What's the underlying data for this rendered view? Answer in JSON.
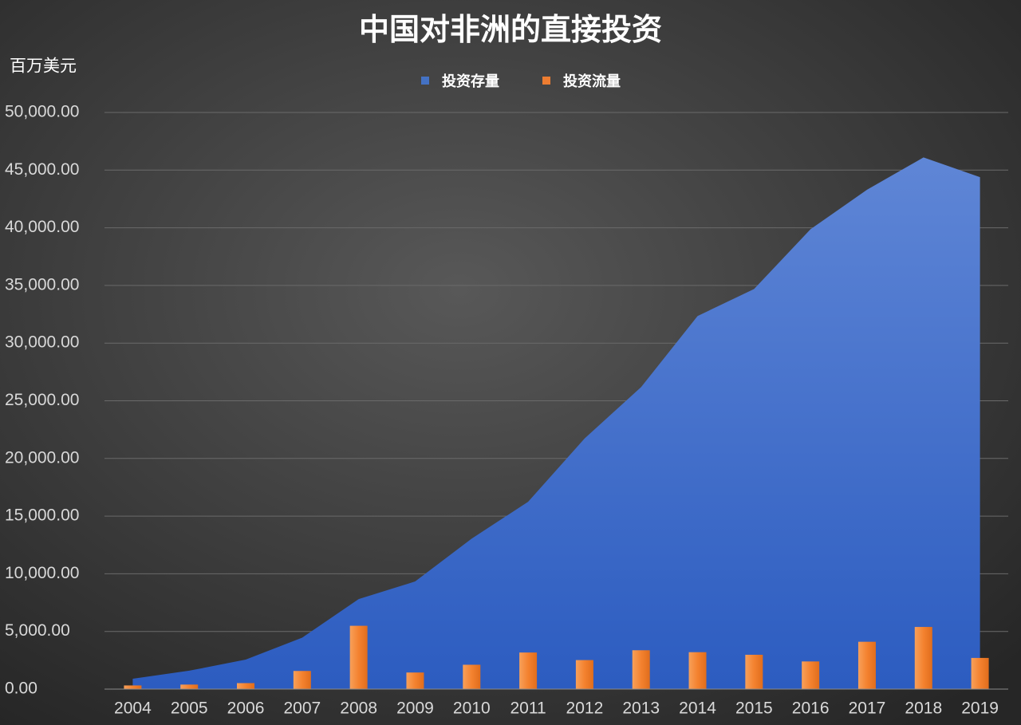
{
  "chart_data": {
    "type": "bar_area",
    "title": "中国对非洲的直接投资",
    "y_axis_label": "百万美元",
    "categories": [
      "2004",
      "2005",
      "2006",
      "2007",
      "2008",
      "2009",
      "2010",
      "2011",
      "2012",
      "2013",
      "2014",
      "2015",
      "2016",
      "2017",
      "2018",
      "2019"
    ],
    "series": [
      {
        "name": "投资存量",
        "type": "area",
        "color": "#4472c4",
        "values": [
          899,
          1595,
          2557,
          4462,
          7804,
          9332,
          13042,
          16244,
          21730,
          26186,
          32350,
          34694,
          39877,
          43297,
          46098,
          44390
        ]
      },
      {
        "name": "投资流量",
        "type": "bar",
        "color": "#ed7d31",
        "values": [
          317,
          392,
          520,
          1574,
          5491,
          1439,
          2112,
          3173,
          2517,
          3370,
          3202,
          2978,
          2399,
          4105,
          5390,
          2704
        ]
      }
    ],
    "ylim": [
      0,
      50000
    ],
    "yticks": [
      {
        "value": 0,
        "label": "0.00"
      },
      {
        "value": 5000,
        "label": "5,000.00"
      },
      {
        "value": 10000,
        "label": "10,000.00"
      },
      {
        "value": 15000,
        "label": "15,000.00"
      },
      {
        "value": 20000,
        "label": "20,000.00"
      },
      {
        "value": 25000,
        "label": "25,000.00"
      },
      {
        "value": 30000,
        "label": "30,000.00"
      },
      {
        "value": 35000,
        "label": "35,000.00"
      },
      {
        "value": 40000,
        "label": "40,000.00"
      },
      {
        "value": 45000,
        "label": "45,000.00"
      },
      {
        "value": 50000,
        "label": "50,000.00"
      }
    ],
    "grid": true,
    "legend": "top"
  }
}
